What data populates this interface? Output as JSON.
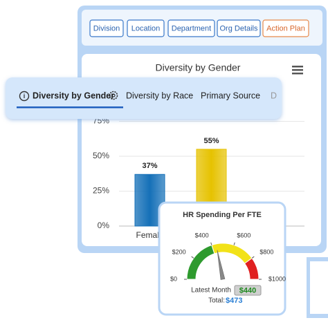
{
  "filters": [
    "Division",
    "Location",
    "Department",
    "Org Details",
    "Action Plan"
  ],
  "tabs": [
    "Diversity by Gender",
    "Diversity by Race",
    "Primary Source",
    "D"
  ],
  "bar_chart": {
    "type": "bar",
    "title": "Diversity by Gender",
    "categories": [
      "Female",
      null
    ],
    "values": [
      37,
      55
    ],
    "value_labels": [
      "37%",
      "55%"
    ],
    "colors": [
      "#1570b8",
      "#e6c200"
    ],
    "ylim": [
      0,
      75
    ],
    "yticks": [
      {
        "value": 0,
        "label": "0%"
      },
      {
        "value": 25,
        "label": "25%"
      },
      {
        "value": 50,
        "label": "50%"
      },
      {
        "value": 75,
        "label": "75%"
      }
    ],
    "grid": true
  },
  "gauge": {
    "type": "gauge",
    "title": "HR Spending Per FTE",
    "xlim": [
      0,
      1000
    ],
    "ticks": [
      {
        "value": 0,
        "label": "$0"
      },
      {
        "value": 200,
        "label": "$200"
      },
      {
        "value": 400,
        "label": "$400"
      },
      {
        "value": 600,
        "label": "$600"
      },
      {
        "value": 800,
        "label": "$800"
      },
      {
        "value": 1000,
        "label": "$1000"
      }
    ],
    "bands": [
      {
        "from": 0,
        "to": 400,
        "color": "#2e9a2e"
      },
      {
        "from": 400,
        "to": 800,
        "color": "#f2e218"
      },
      {
        "from": 800,
        "to": 1000,
        "color": "#e02020"
      }
    ],
    "caption": "Latest Month",
    "value": 440,
    "value_label": "$440",
    "total_caption": "Total:",
    "total": 473,
    "total_label": "$473"
  }
}
